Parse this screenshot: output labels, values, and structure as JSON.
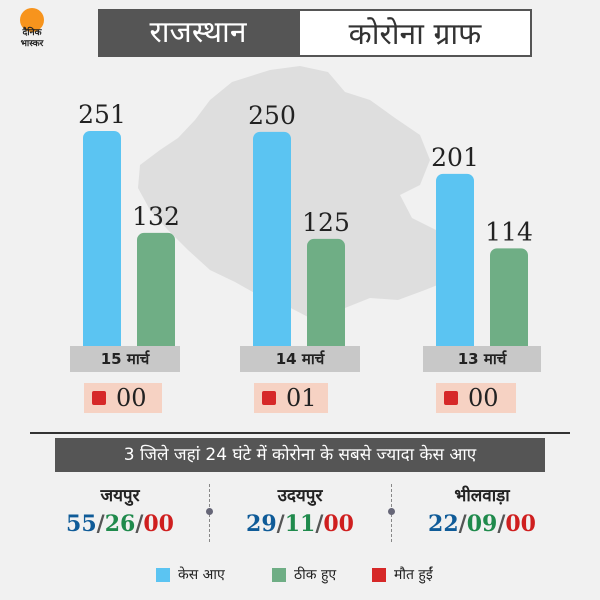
{
  "logo": {
    "line1": "दैनिक",
    "line2": "भास्कर"
  },
  "header": {
    "left": "राजस्थान",
    "right": "कोरोना ग्राफ"
  },
  "colors": {
    "cases": "#5bc4f2",
    "recovered": "#6fae85",
    "deaths": "#d62828",
    "header_dark": "#555555",
    "map": "#dedede"
  },
  "chart_data": {
    "type": "bar",
    "categories": [
      "15 मार्च",
      "14 मार्च",
      "13 मार्च"
    ],
    "series": [
      {
        "name": "केस आए",
        "values": [
          251,
          250,
          201
        ]
      },
      {
        "name": "ठीक हुए",
        "values": [
          132,
          125,
          114
        ]
      },
      {
        "name": "मौत हुईं",
        "values": [
          "00",
          "01",
          "00"
        ]
      }
    ],
    "title": "",
    "xlabel": "",
    "ylabel": "",
    "ylim": [
      0,
      251
    ]
  },
  "districts": {
    "subtitle": "3 जिले जहां 24 घंटे में कोरोना के सबसे ज्यादा केस आए",
    "items": [
      {
        "name": "जयपुर",
        "cases": "55",
        "recovered": "26",
        "deaths": "00"
      },
      {
        "name": "उदयपुर",
        "cases": "29",
        "recovered": "11",
        "deaths": "00"
      },
      {
        "name": "भीलवाड़ा",
        "cases": "22",
        "recovered": "09",
        "deaths": "00"
      }
    ]
  },
  "legend": {
    "cases": "केस आए",
    "recovered": "ठीक हुए",
    "deaths": "मौत हुईं"
  },
  "separator": "/"
}
